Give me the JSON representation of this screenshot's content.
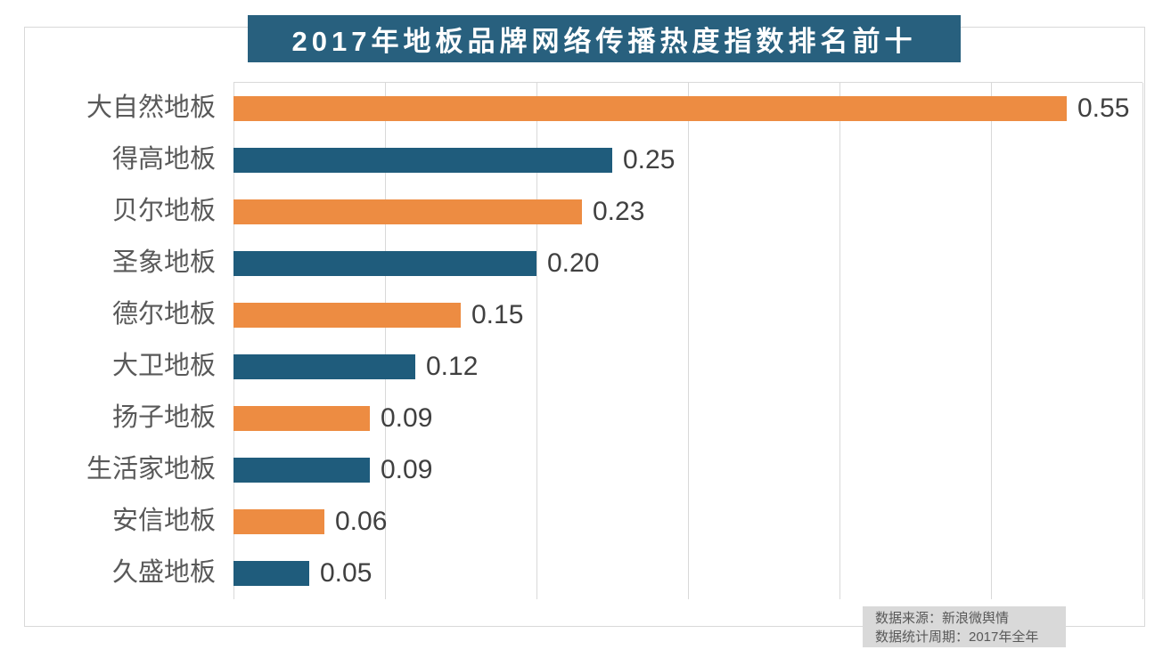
{
  "title": "2017年地板品牌网络传播热度指数排名前十",
  "source": {
    "line1": "数据来源：新浪微舆情",
    "line2": "数据统计周期：2017年全年"
  },
  "colors": {
    "orange_bar": "#ED8C42",
    "blue_bar": "#1F5C7C",
    "title_bg": "#28607E",
    "title_text": "#FFFFFF",
    "category_label": "#595959",
    "value_label": "#404040",
    "gridline": "#D9D9D9",
    "frame_border": "#D9D9D9",
    "source_bg": "#D9D9D9",
    "source_text": "#595959"
  },
  "chart_data": {
    "type": "bar",
    "orientation": "horizontal",
    "title": "2017年地板品牌网络传播热度指数排名前十",
    "categories": [
      "大自然地板",
      "得高地板",
      "贝尔地板",
      "圣象地板",
      "德尔地板",
      "大卫地板",
      "扬子地板",
      "生活家地板",
      "安信地板",
      "久盛地板"
    ],
    "values": [
      0.55,
      0.25,
      0.23,
      0.2,
      0.15,
      0.12,
      0.09,
      0.09,
      0.06,
      0.05
    ],
    "value_labels": [
      "0.55",
      "0.25",
      "0.23",
      "0.20",
      "0.15",
      "0.12",
      "0.09",
      "0.09",
      "0.06",
      "0.05"
    ],
    "xlabel": "",
    "ylabel": "",
    "xlim": [
      0,
      0.6
    ],
    "gridline_step": 0.1,
    "grid": true,
    "legend": false,
    "value_labels_shown": true,
    "bar_color_pattern": [
      "#ED8C42",
      "#1F5C7C"
    ]
  }
}
